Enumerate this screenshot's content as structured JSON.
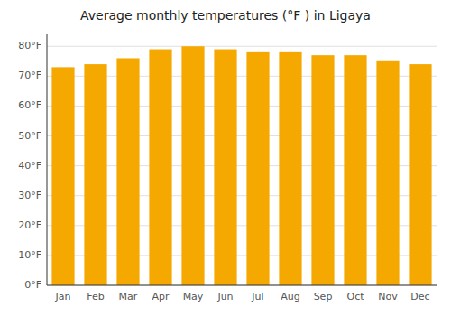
{
  "chart_data": {
    "type": "bar",
    "title": "Average monthly temperatures (°F ) in Ligaya",
    "categories": [
      "Jan",
      "Feb",
      "Mar",
      "Apr",
      "May",
      "Jun",
      "Jul",
      "Aug",
      "Sep",
      "Oct",
      "Nov",
      "Dec"
    ],
    "values": [
      73,
      74,
      76,
      79,
      80,
      79,
      78,
      78,
      77,
      77,
      75,
      74
    ],
    "color": "#F5A800",
    "ylim": [
      0,
      84
    ],
    "yticks": [
      {
        "value": 0,
        "label": "0°F"
      },
      {
        "value": 10,
        "label": "10°F"
      },
      {
        "value": 20,
        "label": "20°F"
      },
      {
        "value": 30,
        "label": "30°F"
      },
      {
        "value": 40,
        "label": "40°F"
      },
      {
        "value": 50,
        "label": "50°F"
      },
      {
        "value": 60,
        "label": "60°F"
      },
      {
        "value": 70,
        "label": "70°F"
      },
      {
        "value": 80,
        "label": "80°F"
      }
    ],
    "grid": true
  }
}
